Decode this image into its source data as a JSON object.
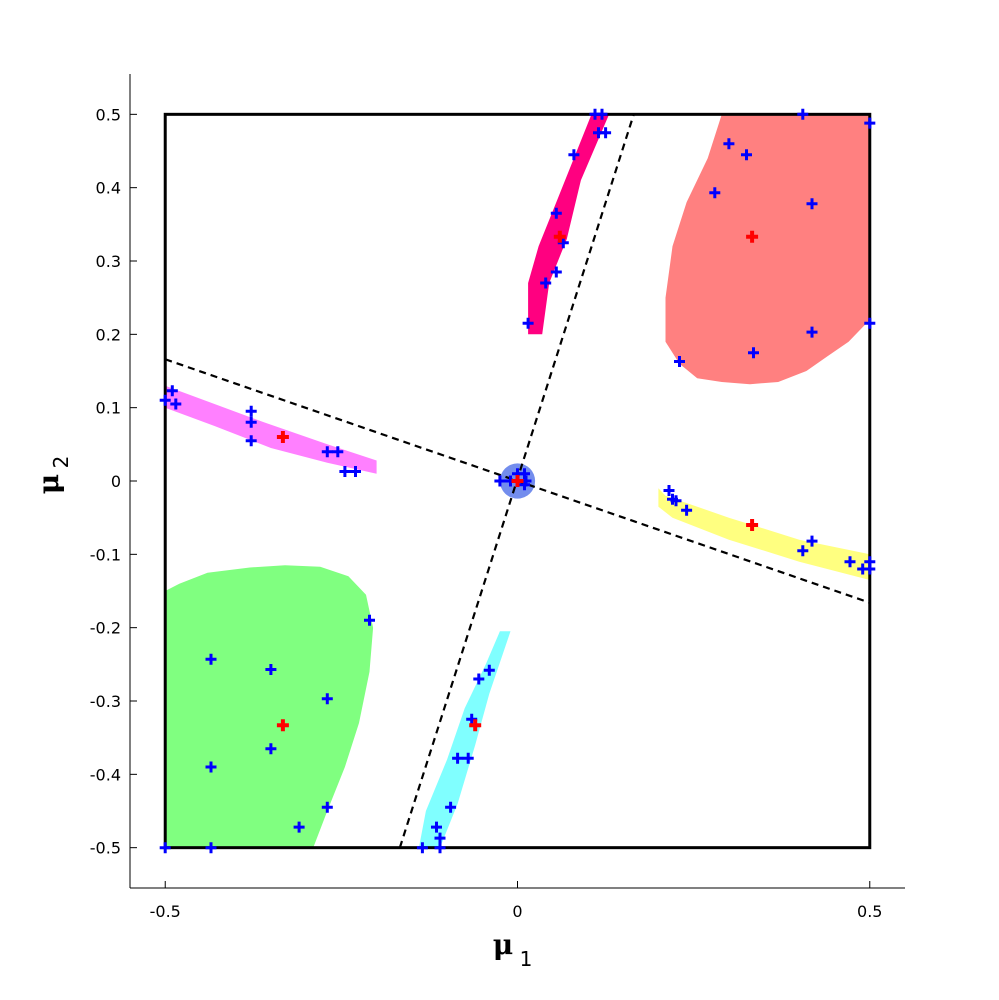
{
  "chart_data": {
    "type": "scatter",
    "xlabel": {
      "symbol": "μ",
      "subscript": "1"
    },
    "ylabel": {
      "symbol": "μ",
      "subscript": "2"
    },
    "xlim": [
      -0.55,
      0.55
    ],
    "ylim": [
      -0.555,
      0.555
    ],
    "xticks": [
      -0.5,
      0,
      0.5
    ],
    "xtick_labels": [
      "-0.5",
      "0",
      "0.5"
    ],
    "yticks": [
      0.5,
      0.4,
      0.3,
      0.2,
      0.1,
      0,
      -0.1,
      -0.2,
      -0.3,
      -0.4,
      -0.5
    ],
    "ytick_labels": [
      "0.5",
      "0.4",
      "0.3",
      "0.2",
      "0.1",
      "0",
      "-0.1",
      "-0.2",
      "-0.3",
      "-0.4",
      "-0.5"
    ],
    "grid": false,
    "domain_box": {
      "x": [
        -0.5,
        0.5
      ],
      "y": [
        -0.5,
        0.5
      ],
      "color": "#000000"
    },
    "boundary_lines": [
      {
        "points": [
          [
            -0.5,
            0.166
          ],
          [
            0.5,
            -0.166
          ]
        ],
        "style": "dashed",
        "color": "#000000"
      },
      {
        "points": [
          [
            -0.167,
            -0.5
          ],
          [
            0.165,
            0.5
          ]
        ],
        "style": "dashed",
        "color": "#000000"
      }
    ],
    "regions": [
      {
        "color": "#ff8080",
        "polygon": [
          [
            0.29,
            0.5
          ],
          [
            0.5,
            0.5
          ],
          [
            0.5,
            0.22
          ],
          [
            0.47,
            0.19
          ],
          [
            0.44,
            0.17
          ],
          [
            0.41,
            0.15
          ],
          [
            0.37,
            0.135
          ],
          [
            0.33,
            0.132
          ],
          [
            0.29,
            0.135
          ],
          [
            0.255,
            0.14
          ],
          [
            0.23,
            0.16
          ],
          [
            0.21,
            0.19
          ],
          [
            0.21,
            0.25
          ],
          [
            0.22,
            0.32
          ],
          [
            0.24,
            0.38
          ],
          [
            0.27,
            0.44
          ]
        ]
      },
      {
        "color": "#80ff80",
        "polygon": [
          [
            -0.5,
            -0.5
          ],
          [
            -0.29,
            -0.5
          ],
          [
            -0.27,
            -0.45
          ],
          [
            -0.245,
            -0.39
          ],
          [
            -0.225,
            -0.33
          ],
          [
            -0.21,
            -0.26
          ],
          [
            -0.205,
            -0.2
          ],
          [
            -0.215,
            -0.155
          ],
          [
            -0.24,
            -0.13
          ],
          [
            -0.28,
            -0.117
          ],
          [
            -0.33,
            -0.115
          ],
          [
            -0.38,
            -0.118
          ],
          [
            -0.44,
            -0.125
          ],
          [
            -0.48,
            -0.14
          ],
          [
            -0.5,
            -0.15
          ]
        ]
      },
      {
        "color": "#ff0080",
        "polygon": [
          [
            0.015,
            0.2
          ],
          [
            0.035,
            0.2
          ],
          [
            0.045,
            0.27
          ],
          [
            0.07,
            0.33
          ],
          [
            0.09,
            0.41
          ],
          [
            0.13,
            0.5
          ],
          [
            0.105,
            0.5
          ],
          [
            0.08,
            0.44
          ],
          [
            0.055,
            0.38
          ],
          [
            0.03,
            0.32
          ],
          [
            0.015,
            0.27
          ]
        ]
      },
      {
        "color": "#80ffff",
        "polygon": [
          [
            -0.14,
            -0.5
          ],
          [
            -0.11,
            -0.5
          ],
          [
            -0.085,
            -0.44
          ],
          [
            -0.06,
            -0.36
          ],
          [
            -0.04,
            -0.29
          ],
          [
            -0.01,
            -0.205
          ],
          [
            -0.025,
            -0.205
          ],
          [
            -0.045,
            -0.25
          ],
          [
            -0.075,
            -0.31
          ],
          [
            -0.1,
            -0.38
          ],
          [
            -0.13,
            -0.45
          ]
        ]
      },
      {
        "color": "#ff80ff",
        "polygon": [
          [
            -0.5,
            0.13
          ],
          [
            -0.5,
            0.1
          ],
          [
            -0.43,
            0.075
          ],
          [
            -0.35,
            0.045
          ],
          [
            -0.27,
            0.025
          ],
          [
            -0.2,
            0.01
          ],
          [
            -0.2,
            0.028
          ],
          [
            -0.27,
            0.05
          ],
          [
            -0.36,
            0.08
          ],
          [
            -0.43,
            0.105
          ]
        ]
      },
      {
        "color": "#ffff80",
        "polygon": [
          [
            0.2,
            -0.01
          ],
          [
            0.21,
            -0.02
          ],
          [
            0.3,
            -0.05
          ],
          [
            0.4,
            -0.08
          ],
          [
            0.5,
            -0.1
          ],
          [
            0.5,
            -0.135
          ],
          [
            0.4,
            -0.11
          ],
          [
            0.3,
            -0.08
          ],
          [
            0.22,
            -0.05
          ],
          [
            0.2,
            -0.035
          ]
        ]
      }
    ],
    "center_region": {
      "center": [
        0,
        0
      ],
      "radius": 0.025,
      "color": "#5070e8"
    },
    "series": [
      {
        "marker": "+",
        "color": "#0000ff",
        "points": [
          [
            0.11,
            0.5
          ],
          [
            0.12,
            0.5
          ],
          [
            0.115,
            0.475
          ],
          [
            0.125,
            0.475
          ],
          [
            0.08,
            0.445
          ],
          [
            0.055,
            0.365
          ],
          [
            0.065,
            0.325
          ],
          [
            0.055,
            0.285
          ],
          [
            0.04,
            0.27
          ],
          [
            0.015,
            0.215
          ],
          [
            0.405,
            0.5
          ],
          [
            0.5,
            0.488
          ],
          [
            0.3,
            0.46
          ],
          [
            0.325,
            0.445
          ],
          [
            0.28,
            0.393
          ],
          [
            0.418,
            0.378
          ],
          [
            0.5,
            0.215
          ],
          [
            0.418,
            0.203
          ],
          [
            0.335,
            0.175
          ],
          [
            0.23,
            0.163
          ],
          [
            -0.49,
            0.123
          ],
          [
            -0.5,
            0.11
          ],
          [
            -0.485,
            0.105
          ],
          [
            -0.378,
            0.095
          ],
          [
            -0.378,
            0.08
          ],
          [
            -0.378,
            0.055
          ],
          [
            -0.27,
            0.04
          ],
          [
            -0.255,
            0.04
          ],
          [
            -0.245,
            0.013
          ],
          [
            -0.23,
            0.013
          ],
          [
            0.215,
            -0.013
          ],
          [
            0.22,
            -0.025
          ],
          [
            0.225,
            -0.027
          ],
          [
            0.24,
            -0.04
          ],
          [
            0.405,
            -0.095
          ],
          [
            0.418,
            -0.082
          ],
          [
            0.472,
            -0.11
          ],
          [
            0.49,
            -0.12
          ],
          [
            0.5,
            -0.11
          ],
          [
            0.5,
            -0.12
          ],
          [
            -0.435,
            -0.243
          ],
          [
            -0.35,
            -0.257
          ],
          [
            -0.21,
            -0.19
          ],
          [
            -0.27,
            -0.297
          ],
          [
            -0.35,
            -0.365
          ],
          [
            -0.435,
            -0.39
          ],
          [
            -0.27,
            -0.445
          ],
          [
            -0.31,
            -0.472
          ],
          [
            -0.5,
            -0.5
          ],
          [
            -0.435,
            -0.5
          ],
          [
            -0.04,
            -0.258
          ],
          [
            -0.055,
            -0.27
          ],
          [
            -0.065,
            -0.325
          ],
          [
            -0.07,
            -0.378
          ],
          [
            -0.085,
            -0.378
          ],
          [
            -0.095,
            -0.445
          ],
          [
            -0.115,
            -0.472
          ],
          [
            -0.11,
            -0.487
          ],
          [
            -0.135,
            -0.5
          ],
          [
            -0.11,
            -0.5
          ],
          [
            -0.025,
            0
          ],
          [
            -0.01,
            0
          ],
          [
            0,
            0.01
          ],
          [
            0.01,
            0.01
          ],
          [
            0.01,
            -0.005
          ],
          [
            0.012,
            0
          ]
        ]
      },
      {
        "marker": "+",
        "color": "#ff0000",
        "points": [
          [
            0.06,
            0.333
          ],
          [
            0.333,
            0.333
          ],
          [
            -0.333,
            0.06
          ],
          [
            0.333,
            -0.06
          ],
          [
            -0.333,
            -0.333
          ],
          [
            -0.06,
            -0.333
          ],
          [
            0,
            0
          ]
        ]
      }
    ]
  }
}
